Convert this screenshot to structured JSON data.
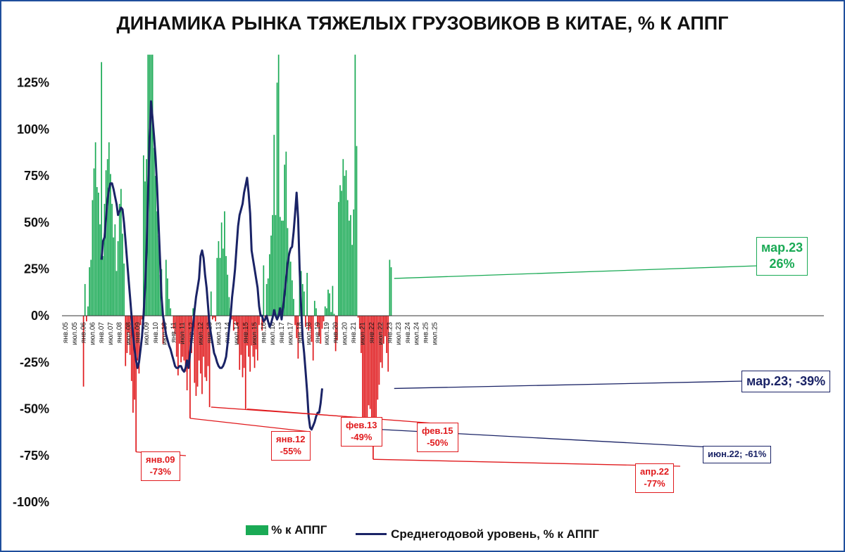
{
  "title": "ДИНАМИКА РЫНКА ТЯЖЕЛЫХ ГРУЗОВИКОВ В КИТАЕ, % К АППГ",
  "colors": {
    "positive": "#1aaa55",
    "negative": "#e0191c",
    "line": "#1a2366",
    "frame": "#1f4e9c"
  },
  "legend": {
    "bars": "% к АППГ",
    "line": "Среднегодовой уровень, % к АППГ"
  },
  "callouts": {
    "jan09": {
      "line1": "янв.09",
      "line2": "-73%"
    },
    "jan12": {
      "line1": "янв.12",
      "line2": "-55%"
    },
    "feb13": {
      "line1": "фев.13",
      "line2": "-49%"
    },
    "feb15": {
      "line1": "фев.15",
      "line2": "-50%"
    },
    "apr22": {
      "line1": "апр.22",
      "line2": "-77%"
    },
    "jun22": {
      "line1": "июн.22; -61%"
    },
    "mar23_bar": {
      "line1": "мар.23",
      "line2": "26%"
    },
    "mar23_line": {
      "line1": "мар.23; -39%"
    }
  },
  "chart_data": {
    "type": "bar+line",
    "ylim": [
      -100,
      140
    ],
    "yticks": [
      125,
      100,
      75,
      50,
      25,
      0,
      -25,
      -50,
      -75,
      -100
    ],
    "ytick_labels": [
      "125%",
      "100%",
      "75%",
      "50%",
      "25%",
      "0%",
      "-25%",
      "-50%",
      "-75%",
      "-100%"
    ],
    "xtick_labels": [
      "янв.05",
      "июл.05",
      "янв.06",
      "июл.06",
      "янв.07",
      "июл.07",
      "янв.08",
      "июл.08",
      "янв.09",
      "июл.09",
      "янв.10",
      "июл.10",
      "янв.11",
      "июл.11",
      "янв.12",
      "июл.12",
      "янв.13",
      "июл.13",
      "янв.14",
      "июл.14",
      "янв.15",
      "июл.15",
      "янв.16",
      "июл.16",
      "янв.17",
      "июл.17",
      "янв.18",
      "июл.18",
      "янв.19",
      "июл.19",
      "янв.20",
      "июл.20",
      "янв.21",
      "июл.21",
      "янв.22",
      "июл.22",
      "янв.23",
      "июл.23",
      "янв.24",
      "июл.24",
      "янв.25",
      "июл.25"
    ],
    "series": [
      {
        "name": "% к АППГ",
        "start": "янв.05",
        "values": [
          0,
          0,
          0,
          0,
          0,
          0,
          0,
          0,
          0,
          0,
          0,
          0,
          -38,
          17,
          -3,
          5,
          26,
          30,
          62,
          79,
          93,
          69,
          66,
          49,
          136,
          32,
          60,
          78,
          84,
          93,
          76,
          60,
          42,
          49,
          24,
          40,
          60,
          68,
          44,
          28,
          -27,
          -20,
          -9,
          -21,
          -35,
          -52,
          -45,
          -73,
          -24,
          -31,
          -5,
          -2,
          86,
          72,
          84,
          140,
          140,
          140,
          140,
          90,
          75,
          56,
          43,
          22,
          25,
          -15,
          0,
          30,
          20,
          9,
          4,
          0,
          -7,
          -10,
          -22,
          -32,
          -15,
          -25,
          -22,
          -24,
          -30,
          -40,
          -27,
          -55,
          -20,
          4,
          -36,
          -43,
          -38,
          -24,
          -31,
          -42,
          -22,
          -33,
          -35,
          -27,
          -49,
          13,
          -2,
          -1,
          -3,
          31,
          40,
          31,
          50,
          36,
          56,
          32,
          22,
          10,
          4,
          -2,
          -8,
          -3,
          -5,
          -15,
          -29,
          -21,
          -33,
          -28,
          -50,
          -16,
          -22,
          -30,
          -16,
          -22,
          -28,
          -18,
          -24,
          -5,
          0,
          -8,
          27,
          -3,
          17,
          20,
          33,
          43,
          54,
          97,
          54,
          125,
          140,
          53,
          51,
          51,
          81,
          88,
          47,
          32,
          29,
          19,
          9,
          -5,
          -12,
          -23,
          32,
          24,
          17,
          13,
          -6,
          23,
          -8,
          -6,
          -14,
          -24,
          8,
          4,
          -6,
          -11,
          -15,
          -7,
          -3,
          5,
          4,
          14,
          12,
          2,
          16,
          1,
          -19,
          -13,
          61,
          70,
          67,
          84,
          75,
          78,
          62,
          51,
          54,
          38,
          57,
          140,
          91,
          -1,
          -7,
          -20,
          -59,
          -61,
          -61,
          -63,
          -48,
          -50,
          -57,
          -77,
          -67,
          -61,
          -45,
          -37,
          -25,
          -28,
          -15,
          -11,
          -20,
          -30,
          30,
          26,
          0,
          0,
          0,
          0,
          0,
          0,
          0,
          0,
          0,
          0,
          0,
          0,
          0,
          0,
          0,
          0,
          0,
          0,
          0,
          0,
          0,
          0,
          0,
          0,
          0,
          0,
          0,
          0,
          0,
          0,
          0,
          0,
          0,
          0
        ]
      },
      {
        "name": "Среднегодовой уровень, % к АППГ",
        "start": "янв.05",
        "values": [
          null,
          null,
          null,
          null,
          null,
          null,
          null,
          null,
          null,
          null,
          null,
          null,
          null,
          null,
          null,
          null,
          null,
          null,
          null,
          null,
          null,
          null,
          null,
          null,
          30,
          40,
          42,
          52,
          62,
          68,
          71,
          71,
          68,
          64,
          60,
          54,
          56,
          58,
          57,
          50,
          40,
          30,
          20,
          10,
          0,
          -10,
          -18,
          -24,
          -28,
          -25,
          -18,
          -11,
          0,
          15,
          35,
          65,
          95,
          115,
          106,
          96,
          85,
          70,
          50,
          30,
          10,
          0,
          -5,
          -10,
          -13,
          -16,
          -18,
          -21,
          -24,
          -27,
          -28,
          -28,
          -27,
          -27,
          -29,
          -30,
          -28,
          -24,
          -28,
          -20,
          -13,
          -5,
          3,
          10,
          15,
          20,
          32,
          35,
          31,
          22,
          15,
          5,
          -5,
          -10,
          -15,
          -20,
          -22,
          -25,
          -27,
          -28,
          -28,
          -27,
          -25,
          -22,
          -15,
          -7,
          0,
          10,
          17,
          25,
          37,
          48,
          54,
          57,
          60,
          66,
          70,
          74,
          66,
          55,
          35,
          30,
          25,
          20,
          15,
          5,
          0,
          0,
          -3,
          -2,
          0,
          -3,
          -6,
          -4,
          -1,
          3,
          0,
          -2,
          0,
          4,
          -2,
          5,
          12,
          20,
          28,
          33,
          36,
          37,
          45,
          55,
          66,
          52,
          25,
          5,
          -12,
          -20,
          -30,
          -41,
          -54,
          -60,
          -61,
          -59,
          -57,
          -54,
          -52,
          -52,
          -47,
          -39,
          null,
          null,
          null,
          null,
          null,
          null,
          null,
          null,
          null,
          null,
          null,
          null,
          null,
          null,
          null,
          null,
          null,
          null,
          null,
          null,
          null,
          null,
          null,
          null,
          null,
          null,
          null,
          null,
          null,
          null,
          null,
          null,
          null,
          null,
          null,
          null,
          null,
          null,
          null,
          null,
          null,
          null,
          null,
          null,
          null,
          null,
          null,
          null,
          null,
          null,
          null,
          null,
          null,
          null,
          null,
          null,
          null,
          null,
          null,
          null,
          null,
          null,
          null,
          null,
          null,
          null,
          null,
          null,
          null,
          null,
          null,
          null,
          null,
          null,
          null,
          null,
          null,
          null,
          null,
          null
        ]
      }
    ]
  }
}
